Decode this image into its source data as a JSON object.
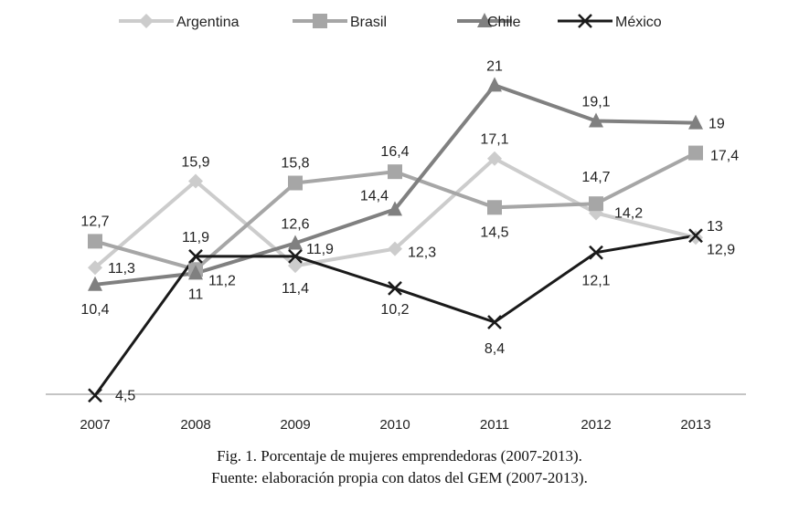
{
  "chart_data": {
    "type": "line",
    "categories": [
      "2007",
      "2008",
      "2009",
      "2010",
      "2011",
      "2012",
      "2013"
    ],
    "series": [
      {
        "name": "Argentina",
        "values": [
          11.3,
          15.9,
          11.4,
          12.3,
          17.1,
          14.2,
          12.9
        ],
        "labels": [
          "11,3",
          "15,9",
          "11,4",
          "12,3",
          "17,1",
          "14,2",
          "12,9"
        ],
        "color": "#cccccc",
        "marker": "diamond"
      },
      {
        "name": "Brasil",
        "values": [
          12.7,
          11.2,
          15.8,
          16.4,
          14.5,
          14.7,
          17.4
        ],
        "labels": [
          "12,7",
          "11,2",
          "15,8",
          "16,4",
          "14,5",
          "14,7",
          "17,4"
        ],
        "color": "#a6a6a6",
        "marker": "square"
      },
      {
        "name": "Chile",
        "values": [
          10.4,
          11,
          12.6,
          14.4,
          21,
          19.1,
          19
        ],
        "labels": [
          "10,4",
          "11",
          "12,6",
          "14,4",
          "21",
          "19,1",
          "19"
        ],
        "color": "#808080",
        "marker": "triangle"
      },
      {
        "name": "México",
        "values": [
          4.5,
          11.9,
          11.9,
          10.2,
          8.4,
          12.1,
          13
        ],
        "labels": [
          "4,5",
          "11,9",
          "11,9",
          "10,2",
          "8,4",
          "12,1",
          "13"
        ],
        "color": "#1a1a1a",
        "marker": "x"
      }
    ],
    "legend_position": "top",
    "grid": false
  },
  "caption": {
    "line1": "Fig. 1. Porcentaje de mujeres emprendedoras (2007-2013).",
    "line2": "Fuente: elaboración propia con datos del GEM (2007-2013)."
  }
}
